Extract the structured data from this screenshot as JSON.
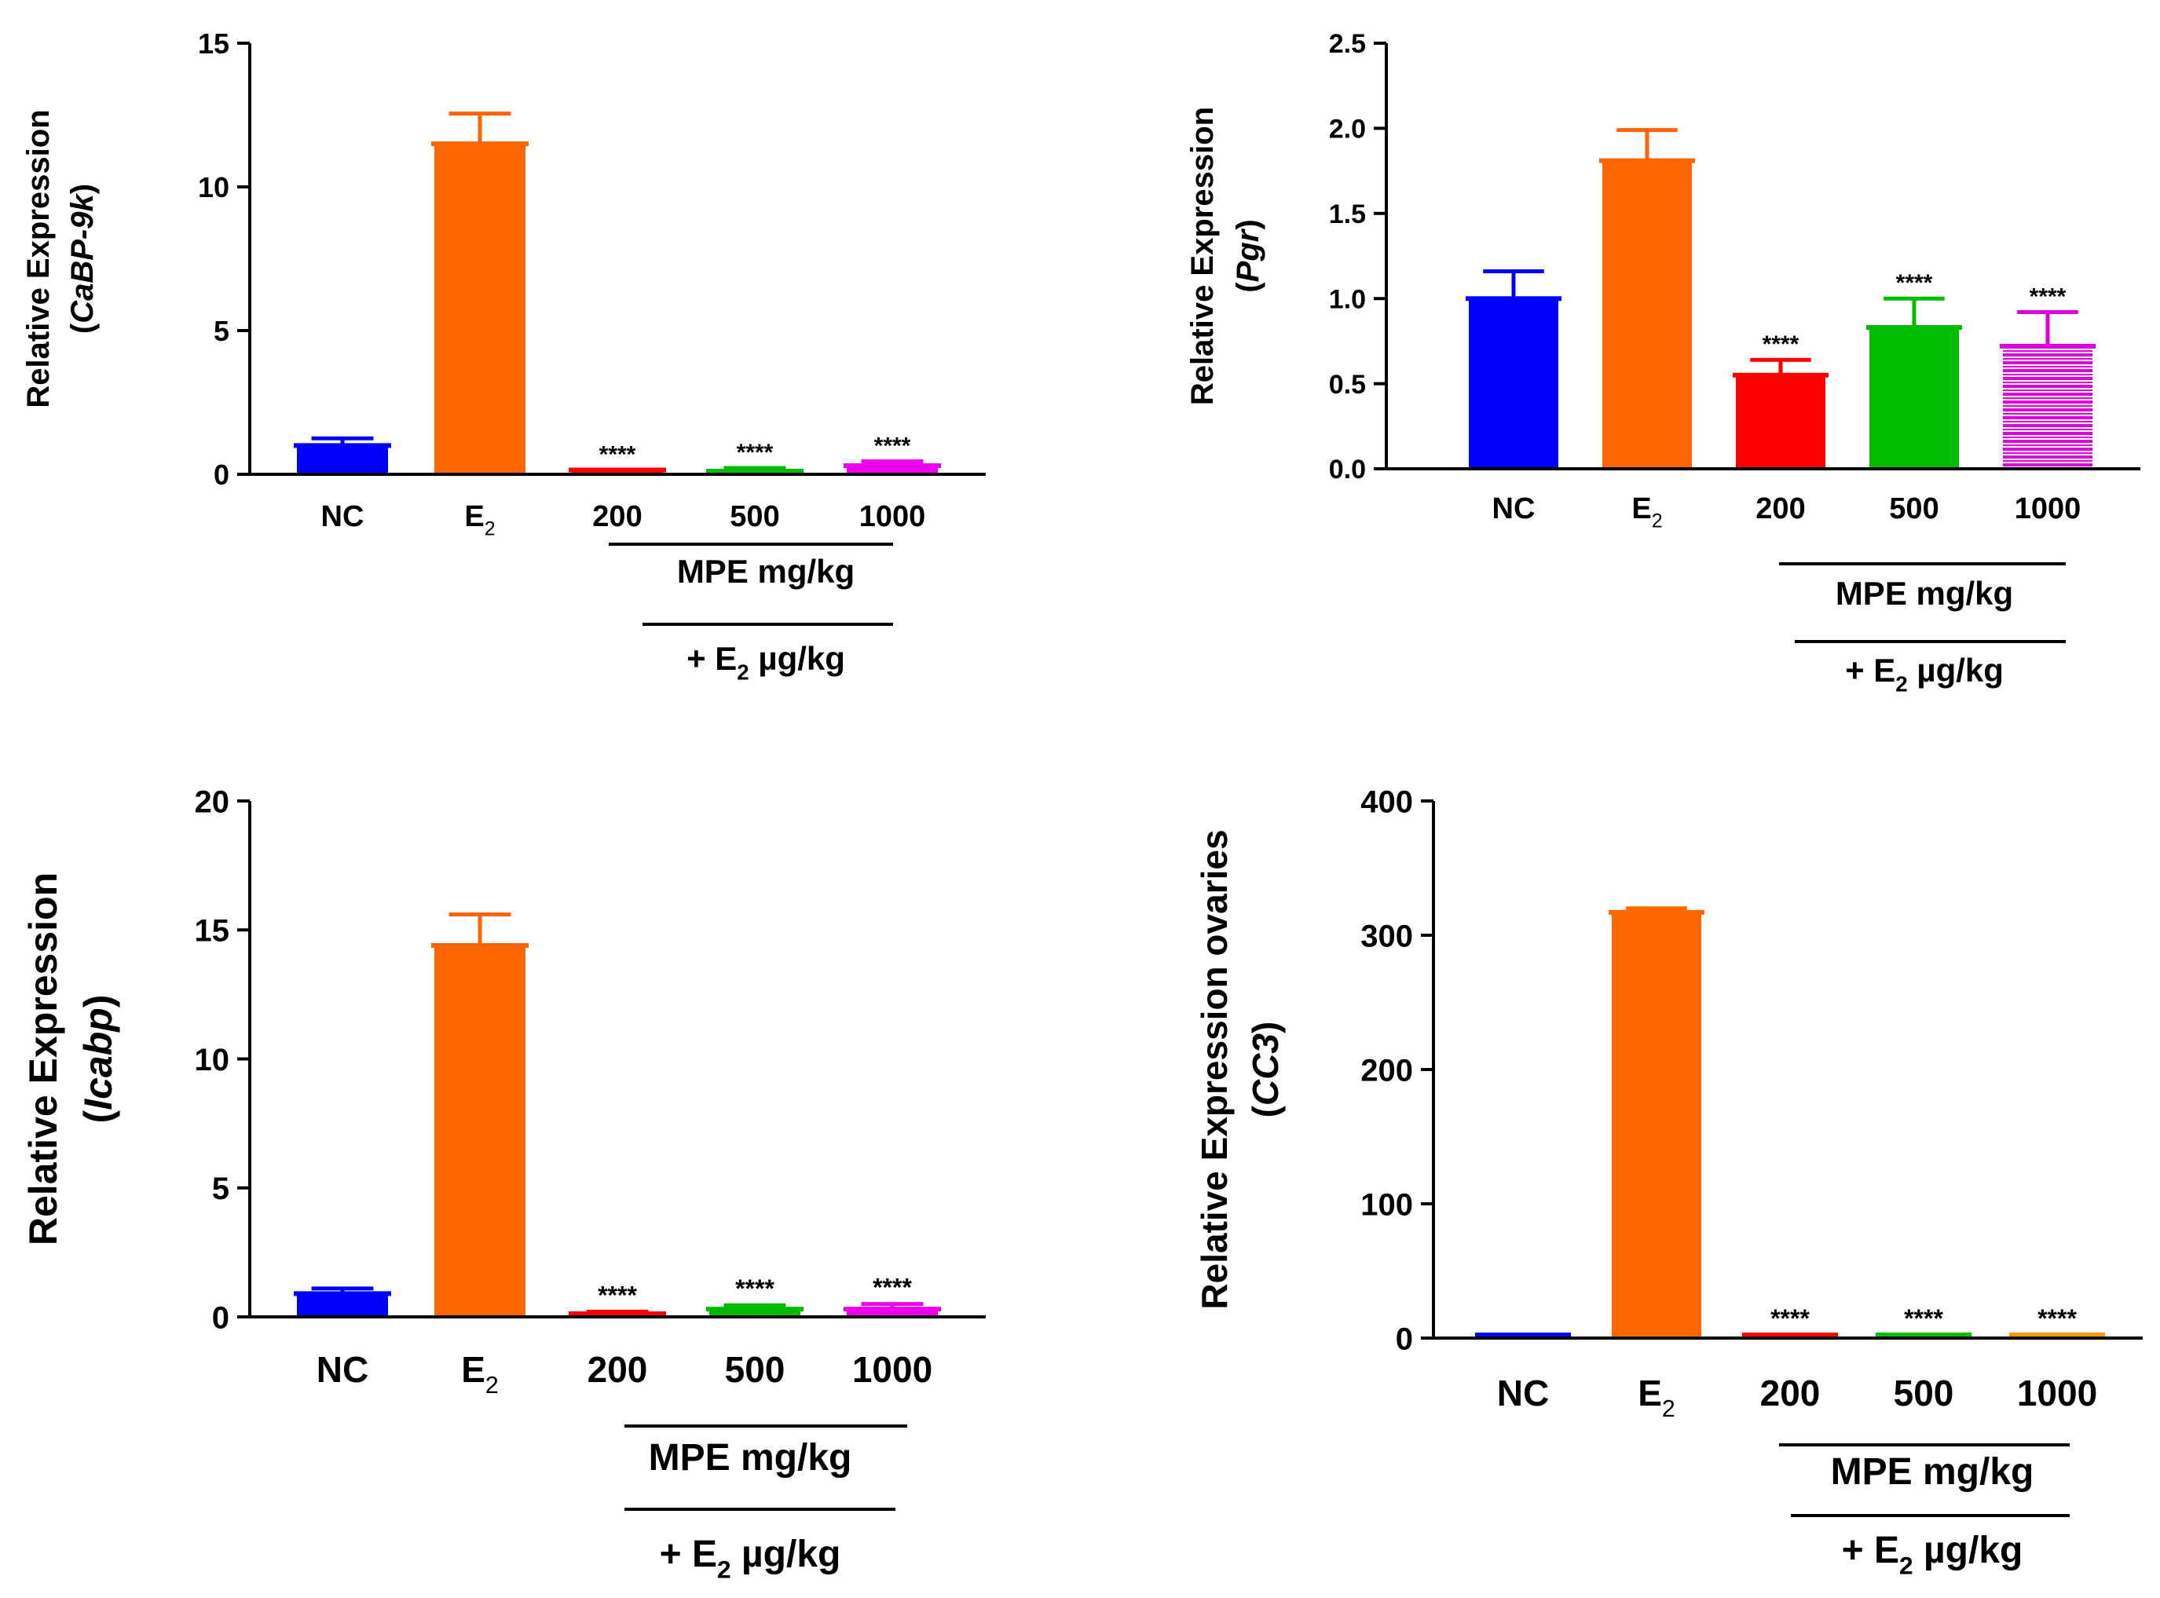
{
  "chart_data": [
    {
      "type": "bar",
      "ylabel": "Relative Expression",
      "ylabel_gene": "CaBP-9k",
      "categories": [
        "NC",
        "E2",
        "200",
        "500",
        "1000"
      ],
      "category_labels": [
        {
          "base": "NC",
          "sub": ""
        },
        {
          "base": "E",
          "sub": "2"
        },
        {
          "base": "200",
          "sub": ""
        },
        {
          "base": "500",
          "sub": ""
        },
        {
          "base": "1000",
          "sub": ""
        }
      ],
      "values": [
        1.0,
        11.5,
        0.15,
        0.1,
        0.3
      ],
      "errors": [
        0.25,
        1.05,
        0.0,
        0.12,
        0.15
      ],
      "colors": [
        "#0000ff",
        "#ff6600",
        "#ff0000",
        "#00bb00",
        "#ee00ee"
      ],
      "hatched": [
        false,
        false,
        false,
        false,
        false
      ],
      "significance": [
        "",
        "",
        "****",
        "****",
        "****"
      ],
      "ylim": [
        0,
        15
      ],
      "yticks": [
        0,
        5,
        10,
        15
      ],
      "ytick_labels": [
        "0",
        "5",
        "10",
        "15"
      ],
      "group_label_1": "MPE mg/kg",
      "group_label_2": {
        "prefix": "+ E",
        "sub": "2",
        "suffix": " µg/kg"
      }
    },
    {
      "type": "bar",
      "ylabel": "Relative Expression",
      "ylabel_gene": "Pgr",
      "categories": [
        "NC",
        "E2",
        "200",
        "500",
        "1000"
      ],
      "category_labels": [
        {
          "base": "NC",
          "sub": ""
        },
        {
          "base": "E",
          "sub": "2"
        },
        {
          "base": "200",
          "sub": ""
        },
        {
          "base": "500",
          "sub": ""
        },
        {
          "base": "1000",
          "sub": ""
        }
      ],
      "values": [
        1.0,
        1.81,
        0.55,
        0.83,
        0.72
      ],
      "errors": [
        0.16,
        0.18,
        0.09,
        0.17,
        0.2
      ],
      "colors": [
        "#0000ff",
        "#ff6600",
        "#ff0000",
        "#00bb00",
        "#dd00dd"
      ],
      "hatched": [
        false,
        false,
        false,
        false,
        true
      ],
      "significance": [
        "",
        "",
        "****",
        "****",
        "****"
      ],
      "ylim": [
        0,
        2.5
      ],
      "yticks": [
        0,
        0.5,
        1.0,
        1.5,
        2.0,
        2.5
      ],
      "ytick_labels": [
        "0.0",
        "0.5",
        "1.0",
        "1.5",
        "2.0",
        "2.5"
      ],
      "group_label_1": "MPE mg/kg",
      "group_label_2": {
        "prefix": "+ E",
        "sub": "2",
        "suffix": " µg/kg"
      }
    },
    {
      "type": "bar",
      "ylabel": "Relative Expression",
      "ylabel_gene": "Icabp",
      "categories": [
        "NC",
        "E2",
        "200",
        "500",
        "1000"
      ],
      "category_labels": [
        {
          "base": "NC",
          "sub": ""
        },
        {
          "base": "E",
          "sub": "2"
        },
        {
          "base": "200",
          "sub": ""
        },
        {
          "base": "500",
          "sub": ""
        },
        {
          "base": "1000",
          "sub": ""
        }
      ],
      "values": [
        0.9,
        14.4,
        0.1,
        0.3,
        0.3
      ],
      "errors": [
        0.2,
        1.2,
        0.1,
        0.15,
        0.2
      ],
      "colors": [
        "#0000ff",
        "#ff6600",
        "#ff0000",
        "#00bb00",
        "#ee00ee"
      ],
      "hatched": [
        false,
        false,
        false,
        false,
        false
      ],
      "significance": [
        "",
        "",
        "****",
        "****",
        "****"
      ],
      "ylim": [
        0,
        20
      ],
      "yticks": [
        0,
        5,
        10,
        15,
        20
      ],
      "ytick_labels": [
        "0",
        "5",
        "10",
        "15",
        "20"
      ],
      "group_label_1": "MPE mg/kg",
      "group_label_2": {
        "prefix": "+ E",
        "sub": "2",
        "suffix": " µg/kg"
      }
    },
    {
      "type": "bar",
      "ylabel": "Relative Expression ovaries",
      "ylabel_gene": "CC3",
      "categories": [
        "NC",
        "E2",
        "200",
        "500",
        "1000"
      ],
      "category_labels": [
        {
          "base": "NC",
          "sub": ""
        },
        {
          "base": "E",
          "sub": "2"
        },
        {
          "base": "200",
          "sub": ""
        },
        {
          "base": "500",
          "sub": ""
        },
        {
          "base": "1000",
          "sub": ""
        }
      ],
      "values": [
        1,
        317,
        0,
        0,
        1
      ],
      "errors": [
        0,
        3,
        0,
        0,
        0
      ],
      "colors": [
        "#0000ff",
        "#ff6600",
        "#ff0000",
        "#00bb00",
        "#ff9900"
      ],
      "hatched": [
        false,
        false,
        false,
        false,
        false
      ],
      "significance": [
        "",
        "",
        "****",
        "****",
        "****"
      ],
      "ylim": [
        0,
        400
      ],
      "yticks": [
        0,
        100,
        200,
        300,
        400
      ],
      "ytick_labels": [
        "0",
        "100",
        "200",
        "300",
        "400"
      ],
      "group_label_1": "MPE mg/kg",
      "group_label_2": {
        "prefix": "+ E",
        "sub": "2",
        "suffix": " µg/kg"
      }
    }
  ]
}
